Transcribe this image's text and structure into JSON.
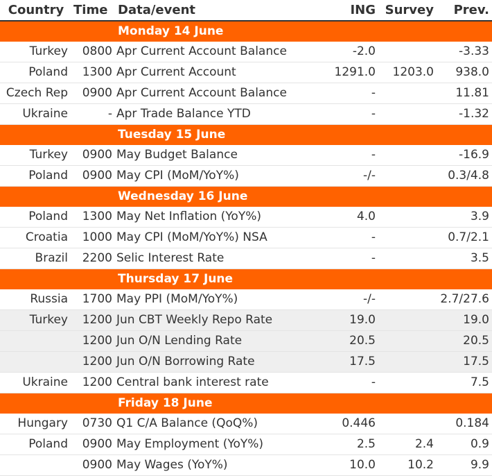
{
  "headers": [
    "Country",
    "Time",
    "Data/event",
    "ING",
    "Survey",
    "Prev."
  ],
  "days": [
    {
      "label": "Monday 14 June",
      "rows": [
        {
          "country": "Turkey",
          "time": "0800",
          "event": "Apr Current Account Balance",
          "ing": "-2.0",
          "survey": "",
          "prev": "-3.33"
        },
        {
          "country": "Poland",
          "time": "1300",
          "event": "Apr Current Account",
          "ing": "1291.0",
          "survey": "1203.0",
          "prev": "938.0"
        },
        {
          "country": "Czech Rep",
          "time": "0900",
          "event": "Apr Current Account Balance",
          "ing": "-",
          "survey": "",
          "prev": "11.81"
        },
        {
          "country": "Ukraine",
          "time": "-",
          "event": "Apr Trade Balance YTD",
          "ing": "-",
          "survey": "",
          "prev": "-1.32"
        }
      ]
    },
    {
      "label": "Tuesday 15 June",
      "rows": [
        {
          "country": "Turkey",
          "time": "0900",
          "event": "May Budget Balance",
          "ing": "-",
          "survey": "",
          "prev": "-16.9"
        },
        {
          "country": "Poland",
          "time": "0900",
          "event": "May CPI (MoM/YoY%)",
          "ing": "-/-",
          "survey": "",
          "prev": "0.3/4.8"
        }
      ]
    },
    {
      "label": "Wednesday 16 June",
      "rows": [
        {
          "country": "Poland",
          "time": "1300",
          "event": "May Net Inflation (YoY%)",
          "ing": "4.0",
          "survey": "",
          "prev": "3.9"
        },
        {
          "country": "Croatia",
          "time": "1000",
          "event": "May CPI (MoM/YoY%) NSA",
          "ing": "-",
          "survey": "",
          "prev": "0.7/2.1"
        },
        {
          "country": "Brazil",
          "time": "2200",
          "event": "Selic Interest Rate",
          "ing": "-",
          "survey": "",
          "prev": "3.5"
        }
      ]
    },
    {
      "label": "Thursday 17 June",
      "rows": [
        {
          "country": "Russia",
          "time": "1700",
          "event": "May PPI (MoM/YoY%)",
          "ing": "-/-",
          "survey": "",
          "prev": "2.7/27.6"
        },
        {
          "country": "Turkey",
          "time": "1200",
          "event": "Jun CBT Weekly Repo Rate",
          "ing": "19.0",
          "survey": "",
          "prev": "19.0",
          "shade": true
        },
        {
          "country": "",
          "time": "1200",
          "event": "Jun O/N Lending Rate",
          "ing": "20.5",
          "survey": "",
          "prev": "20.5",
          "shade": true
        },
        {
          "country": "",
          "time": "1200",
          "event": "Jun O/N Borrowing Rate",
          "ing": "17.5",
          "survey": "",
          "prev": "17.5",
          "shade": true
        },
        {
          "country": "Ukraine",
          "time": "1200",
          "event": "Central bank interest rate",
          "ing": "-",
          "survey": "",
          "prev": "7.5"
        }
      ]
    },
    {
      "label": "Friday 18 June",
      "rows": [
        {
          "country": "Hungary",
          "time": "0730",
          "event": "Q1 C/A Balance (QoQ%)",
          "ing": "0.446",
          "survey": "",
          "prev": "0.184"
        },
        {
          "country": "Poland",
          "time": "0900",
          "event": "May Employment (YoY%)",
          "ing": "2.5",
          "survey": "2.4",
          "prev": "0.9"
        },
        {
          "country": "",
          "time": "0900",
          "event": "May Wages (YoY%)",
          "ing": "10.0",
          "survey": "10.2",
          "prev": "9.9"
        }
      ]
    }
  ]
}
